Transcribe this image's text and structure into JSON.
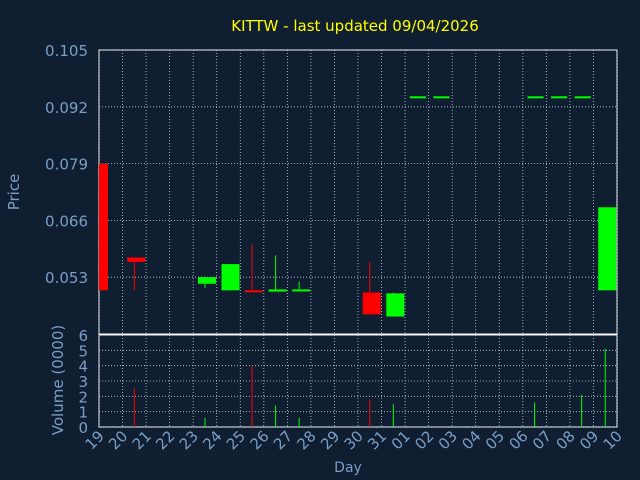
{
  "colors": {
    "background": "#0f1e30",
    "plot_bg": "#0f1e30",
    "grid": "#c8d0da",
    "axis_text": "#7a9fc7",
    "title": "#ffff00",
    "up": "#00ff00",
    "down": "#ff0000",
    "frame": "#ffffff"
  },
  "chart_data": {
    "type": "candlestick",
    "title": "KITTW - last updated 09/04/2026",
    "ylabel": "Price",
    "xlabel": "Day",
    "volume_label": "Volume (0000)",
    "price_ylim": [
      0.04,
      0.105
    ],
    "price_ticks": [
      "0.105",
      "0.092",
      "0.079",
      "0.066",
      "0.053"
    ],
    "volume_ylim": [
      0,
      6
    ],
    "volume_ticks": [
      "6",
      "5",
      "4",
      "3",
      "2",
      "1",
      "0"
    ],
    "x_labels": [
      "19",
      "20",
      "21",
      "22",
      "23",
      "24",
      "25",
      "26",
      "27",
      "28",
      "29",
      "30",
      "31",
      "01",
      "02",
      "03",
      "04",
      "05",
      "06",
      "07",
      "08",
      "09",
      "10"
    ],
    "candles": [
      {
        "i": 0,
        "open": 0.079,
        "high": 0.079,
        "low": 0.05,
        "close": 0.05,
        "dir": "down"
      },
      {
        "i": 1,
        "open": 0.0575,
        "high": 0.0575,
        "low": 0.05,
        "close": 0.0565,
        "dir": "down"
      },
      {
        "i": 4,
        "open": 0.0515,
        "high": 0.053,
        "low": 0.0505,
        "close": 0.053,
        "dir": "up"
      },
      {
        "i": 5,
        "open": 0.05,
        "high": 0.056,
        "low": 0.05,
        "close": 0.056,
        "dir": "up"
      },
      {
        "i": 6,
        "open": 0.05,
        "high": 0.0605,
        "low": 0.05,
        "close": 0.0497,
        "dir": "down"
      },
      {
        "i": 7,
        "open": 0.0497,
        "high": 0.058,
        "low": 0.0497,
        "close": 0.0502,
        "dir": "up"
      },
      {
        "i": 8,
        "open": 0.0499,
        "high": 0.052,
        "low": 0.0497,
        "close": 0.0502,
        "dir": "up"
      },
      {
        "i": 11,
        "open": 0.0495,
        "high": 0.0565,
        "low": 0.0445,
        "close": 0.0445,
        "dir": "down"
      },
      {
        "i": 12,
        "open": 0.044,
        "high": 0.0495,
        "low": 0.044,
        "close": 0.0493,
        "dir": "up"
      },
      {
        "i": 13,
        "open": 0.0942,
        "high": 0.0942,
        "low": 0.0942,
        "close": 0.0944,
        "dir": "up"
      },
      {
        "i": 14,
        "open": 0.0942,
        "high": 0.0942,
        "low": 0.0942,
        "close": 0.0944,
        "dir": "up"
      },
      {
        "i": 18,
        "open": 0.0942,
        "high": 0.0942,
        "low": 0.0942,
        "close": 0.0944,
        "dir": "up"
      },
      {
        "i": 19,
        "open": 0.0942,
        "high": 0.0942,
        "low": 0.0942,
        "close": 0.0944,
        "dir": "up"
      },
      {
        "i": 20,
        "open": 0.0942,
        "high": 0.0942,
        "low": 0.0942,
        "close": 0.0944,
        "dir": "up"
      },
      {
        "i": 21,
        "open": 0.05,
        "high": 0.069,
        "low": 0.05,
        "close": 0.069,
        "dir": "up"
      }
    ],
    "volume": [
      {
        "i": 1,
        "value": 2.5,
        "dir": "down"
      },
      {
        "i": 4,
        "value": 0.6,
        "dir": "up"
      },
      {
        "i": 6,
        "value": 4.0,
        "dir": "down"
      },
      {
        "i": 7,
        "value": 1.4,
        "dir": "up"
      },
      {
        "i": 8,
        "value": 0.6,
        "dir": "up"
      },
      {
        "i": 11,
        "value": 1.8,
        "dir": "down"
      },
      {
        "i": 12,
        "value": 1.5,
        "dir": "up"
      },
      {
        "i": 18,
        "value": 1.6,
        "dir": "up"
      },
      {
        "i": 20,
        "value": 2.1,
        "dir": "up"
      },
      {
        "i": 21,
        "value": 5.1,
        "dir": "up"
      }
    ]
  }
}
